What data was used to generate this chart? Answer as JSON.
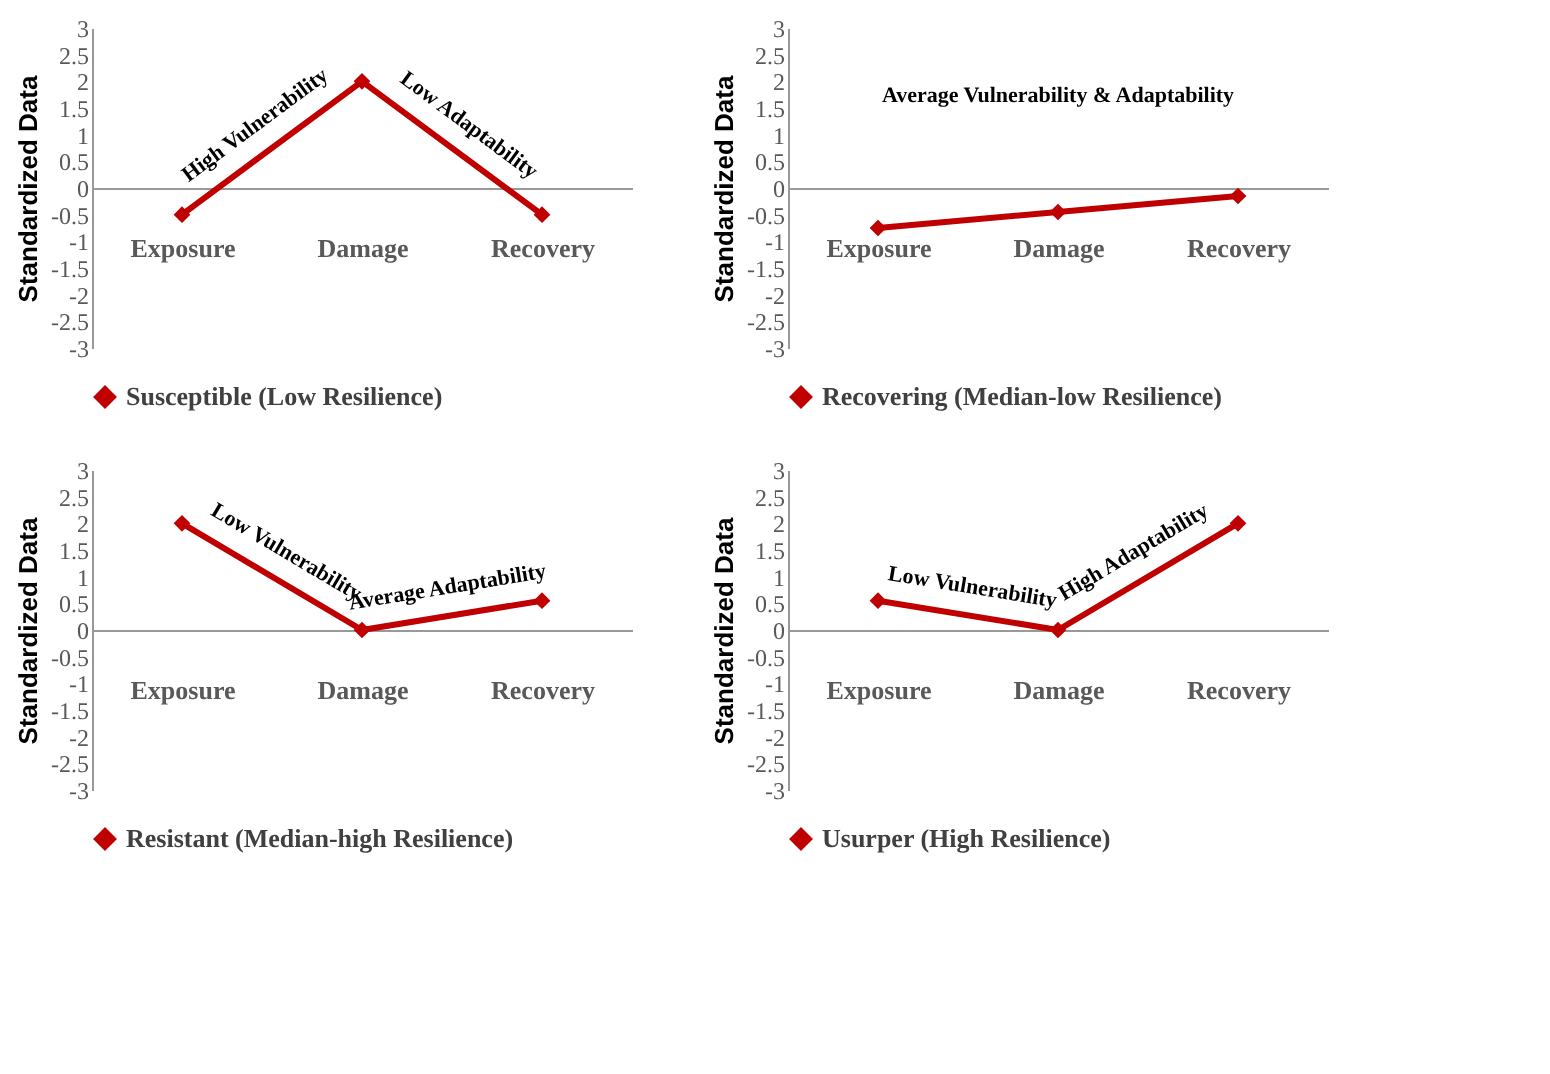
{
  "chart_data": [
    {
      "type": "line",
      "categories": [
        "Exposure",
        "Damage",
        "Recovery"
      ],
      "ylabel": "Standardized Data",
      "ylim": [
        -3,
        3
      ],
      "yticks": [
        -3,
        -2.5,
        -2,
        -1.5,
        -1,
        -0.5,
        0,
        0.5,
        1,
        1.5,
        2,
        2.5,
        3
      ],
      "grid": false,
      "legend": "bottom",
      "marker": "diamond",
      "annotations": [
        "High Vulnerability",
        "Low Adaptability"
      ],
      "series": [
        {
          "name": "Susceptible (Low Resilience)",
          "color": "#c00000",
          "values": [
            -0.5,
            2,
            -0.5
          ]
        }
      ]
    },
    {
      "type": "line",
      "categories": [
        "Exposure",
        "Damage",
        "Recovery"
      ],
      "ylabel": "Standardized Data",
      "ylim": [
        -3,
        3
      ],
      "yticks": [
        -3,
        -2.5,
        -2,
        -1.5,
        -1,
        -0.5,
        0,
        0.5,
        1,
        1.5,
        2,
        2.5,
        3
      ],
      "grid": false,
      "legend": "bottom",
      "marker": "diamond",
      "annotations": [
        "Average  Vulnerability & Adaptability"
      ],
      "series": [
        {
          "name": "Recovering (Median-low Resilience)",
          "color": "#c00000",
          "values": [
            -0.75,
            -0.45,
            -0.15
          ]
        }
      ]
    },
    {
      "type": "line",
      "categories": [
        "Exposure",
        "Damage",
        "Recovery"
      ],
      "ylabel": "Standardized Data",
      "ylim": [
        -3,
        3
      ],
      "yticks": [
        -3,
        -2.5,
        -2,
        -1.5,
        -1,
        -0.5,
        0,
        0.5,
        1,
        1.5,
        2,
        2.5,
        3
      ],
      "grid": false,
      "legend": "bottom",
      "marker": "diamond",
      "annotations": [
        "Low Vulnerability",
        "Average Adaptability"
      ],
      "series": [
        {
          "name": "Resistant (Median-high Resilience)",
          "color": "#c00000",
          "values": [
            2,
            0,
            0.55
          ]
        }
      ]
    },
    {
      "type": "line",
      "categories": [
        "Exposure",
        "Damage",
        "Recovery"
      ],
      "ylabel": "Standardized Data",
      "ylim": [
        -3,
        3
      ],
      "yticks": [
        -3,
        -2.5,
        -2,
        -1.5,
        -1,
        -0.5,
        0,
        0.5,
        1,
        1.5,
        2,
        2.5,
        3
      ],
      "grid": false,
      "legend": "bottom",
      "marker": "diamond",
      "annotations": [
        "Low Vulnerability",
        "High Adaptability"
      ],
      "series": [
        {
          "name": "Usurper (High Resilience)",
          "color": "#c00000",
          "values": [
            0.55,
            0,
            2
          ]
        }
      ]
    }
  ]
}
